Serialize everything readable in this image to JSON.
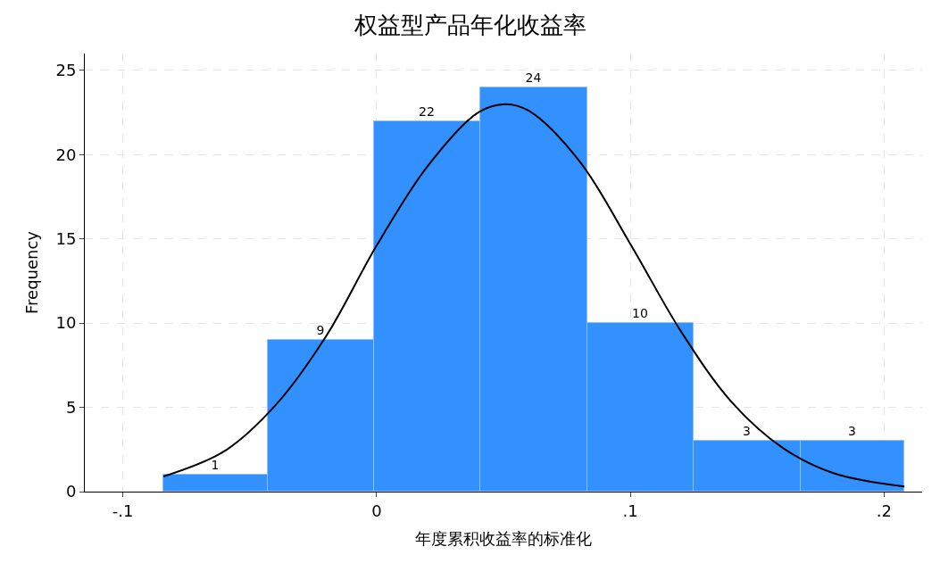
{
  "chart_data": {
    "type": "histogram",
    "title": "权益型产品年化收益率",
    "xlabel": "年度累积收益率的标准化",
    "ylabel": "Frequency",
    "bins": [
      -0.084,
      -0.043,
      -0.001,
      0.041,
      0.083,
      0.125,
      0.167,
      0.208
    ],
    "values": [
      1,
      9,
      22,
      24,
      10,
      3,
      3
    ],
    "color": "#3390ff",
    "value_labels": [
      "1",
      "9",
      "22",
      "24",
      "10",
      "3",
      "3"
    ],
    "series": [
      {
        "type": "line",
        "color": "#000000",
        "x": [
          -0.084,
          -0.06,
          -0.04,
          -0.02,
          0,
          0.02,
          0.04,
          0.0507,
          0.06,
          0.08,
          0.1,
          0.12,
          0.14,
          0.16,
          0.18,
          0.208
        ],
        "values": [
          0.9,
          2.4,
          5.1,
          9.2,
          14.6,
          19.3,
          22.5,
          23,
          22.6,
          19.6,
          14.7,
          9.5,
          5.3,
          2.6,
          1.1,
          0.3
        ]
      }
    ],
    "xlim": [
      -0.115,
      0.215
    ],
    "xticks": [
      {
        "value": -0.1,
        "label": "-.1"
      },
      0,
      {
        "value": 0.1,
        "label": ".1"
      },
      {
        "value": 0.2,
        "label": ".2"
      }
    ],
    "ylim": [
      0,
      26
    ],
    "yticks": [
      0,
      5,
      10,
      15,
      20,
      25
    ],
    "grid": true
  }
}
